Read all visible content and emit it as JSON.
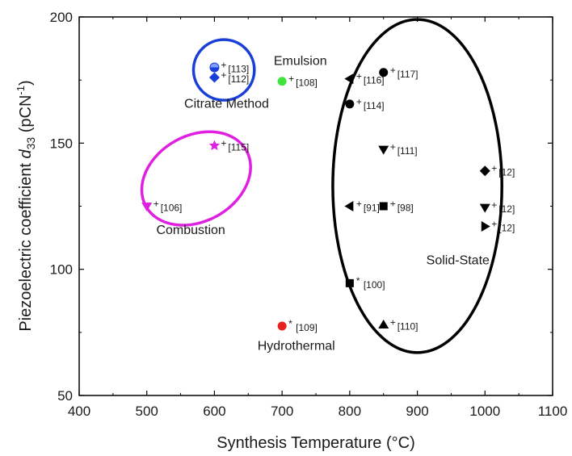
{
  "chart_data": {
    "type": "scatter",
    "title": "",
    "xlabel": "Synthesis Temperature (°C)",
    "ylabel": {
      "main": "Piezoelectric coefficient ",
      "symbol": "d",
      "symbol_sub": "33",
      "unit_open": " (pCN",
      "unit_sup": "-1",
      "unit_close": ")"
    },
    "xlim": [
      400,
      1100
    ],
    "ylim": [
      50,
      200
    ],
    "x_ticks": [
      400,
      500,
      600,
      700,
      800,
      900,
      1000,
      1100
    ],
    "y_ticks": [
      50,
      100,
      150,
      200
    ],
    "grid": false,
    "legend": "none",
    "points": [
      {
        "x": 600,
        "y": 180,
        "marker": "half-circle",
        "color": "#1a3fd6",
        "suffix": "+",
        "ref": "[113]"
      },
      {
        "x": 600,
        "y": 176,
        "marker": "diamond",
        "color": "#1a3fd6",
        "suffix": "+",
        "ref": "[112]"
      },
      {
        "x": 700,
        "y": 174.5,
        "marker": "circle",
        "color": "#3ee33e",
        "suffix": "+",
        "ref": "[108]"
      },
      {
        "x": 600,
        "y": 149,
        "marker": "star",
        "color": "#e020e0",
        "suffix": "+",
        "ref": "[115]"
      },
      {
        "x": 500,
        "y": 125,
        "marker": "triangle-down",
        "color": "#e020e0",
        "suffix": "+",
        "ref": "[106]"
      },
      {
        "x": 700,
        "y": 77.5,
        "marker": "circle",
        "color": "#e8201e",
        "suffix": "*",
        "ref": "[109]"
      },
      {
        "x": 850,
        "y": 178,
        "marker": "circle",
        "color": "#000000",
        "suffix": "+",
        "ref": "[117]"
      },
      {
        "x": 800,
        "y": 175.5,
        "marker": "triangle-left",
        "color": "#000000",
        "suffix": "+",
        "ref": "[116]"
      },
      {
        "x": 800,
        "y": 165.5,
        "marker": "circle",
        "color": "#000000",
        "suffix": "+",
        "ref": "[114]"
      },
      {
        "x": 850,
        "y": 147.5,
        "marker": "triangle-down",
        "color": "#000000",
        "suffix": "+",
        "ref": "[111]"
      },
      {
        "x": 1000,
        "y": 139,
        "marker": "diamond",
        "color": "#000000",
        "suffix": "+",
        "ref": "[12]"
      },
      {
        "x": 800,
        "y": 125,
        "marker": "triangle-left",
        "color": "#000000",
        "suffix": "+",
        "ref": "[91]"
      },
      {
        "x": 850,
        "y": 125,
        "marker": "square",
        "color": "#000000",
        "suffix": "+",
        "ref": "[98]"
      },
      {
        "x": 1000,
        "y": 124.5,
        "marker": "triangle-down",
        "color": "#000000",
        "suffix": "+",
        "ref": "[12]"
      },
      {
        "x": 1000,
        "y": 117,
        "marker": "triangle-right",
        "color": "#000000",
        "suffix": "+",
        "ref": "[12]"
      },
      {
        "x": 800,
        "y": 94.5,
        "marker": "square",
        "color": "#000000",
        "suffix": "*",
        "ref": "[100]"
      },
      {
        "x": 850,
        "y": 78,
        "marker": "triangle-up",
        "color": "#000000",
        "suffix": "+",
        "ref": "[110]"
      }
    ],
    "groups": [
      {
        "label": "Citrate Method",
        "color": "#1a3fd6",
        "cx": 614,
        "cy": 179,
        "rx": 45,
        "ry": 12,
        "label_x": 618,
        "label_y": 164
      },
      {
        "label": "Emulsion",
        "color": "#000000",
        "label_x": 727,
        "label_y": 181
      },
      {
        "label": "Combustion",
        "color": "#e020e0",
        "cx": 573,
        "cy": 136,
        "rx": 85,
        "ry": 17,
        "rotate": -29,
        "label_x": 565,
        "label_y": 114
      },
      {
        "label": "Hydrothermal",
        "color": "#000000",
        "label_x": 721,
        "label_y": 68
      },
      {
        "label": "Solid-State",
        "color": "#000000",
        "cx": 900,
        "cy": 133,
        "rx": 125,
        "ry": 66,
        "label_x": 960,
        "label_y": 102
      }
    ]
  }
}
